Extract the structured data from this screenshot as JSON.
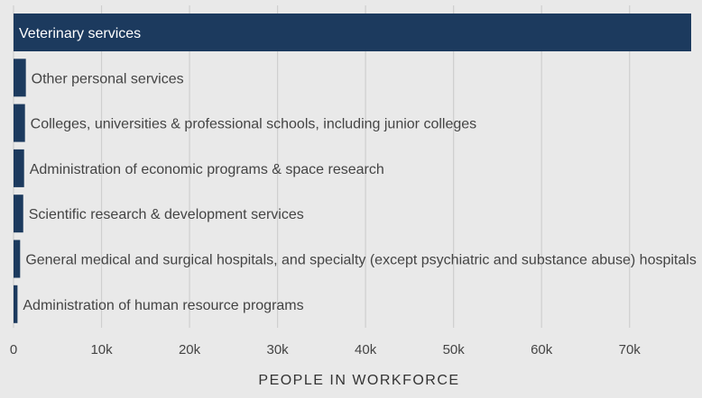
{
  "chart_data": {
    "type": "bar",
    "orientation": "horizontal",
    "categories": [
      "Veterinary services",
      "Other personal services",
      "Colleges, universities & professional schools, including junior colleges",
      "Administration of economic programs & space research",
      "Scientific research & development services",
      "General medical and surgical hospitals, and specialty (except psychiatric and substance abuse) hospitals",
      "Administration of human resource programs"
    ],
    "values": [
      77000,
      1400,
      1300,
      1200,
      1100,
      750,
      450
    ],
    "xlabel": "PEOPLE IN WORKFORCE",
    "xlim": [
      0,
      77000
    ],
    "xticks": [
      0,
      10000,
      20000,
      30000,
      40000,
      50000,
      60000,
      70000
    ],
    "xtick_labels": [
      "0",
      "10k",
      "20k",
      "30k",
      "40k",
      "50k",
      "60k",
      "70k"
    ],
    "grid": true,
    "bar_color": "#1c3a5e",
    "label_color_inside": "#ffffff",
    "label_color_outside": "#444444"
  }
}
